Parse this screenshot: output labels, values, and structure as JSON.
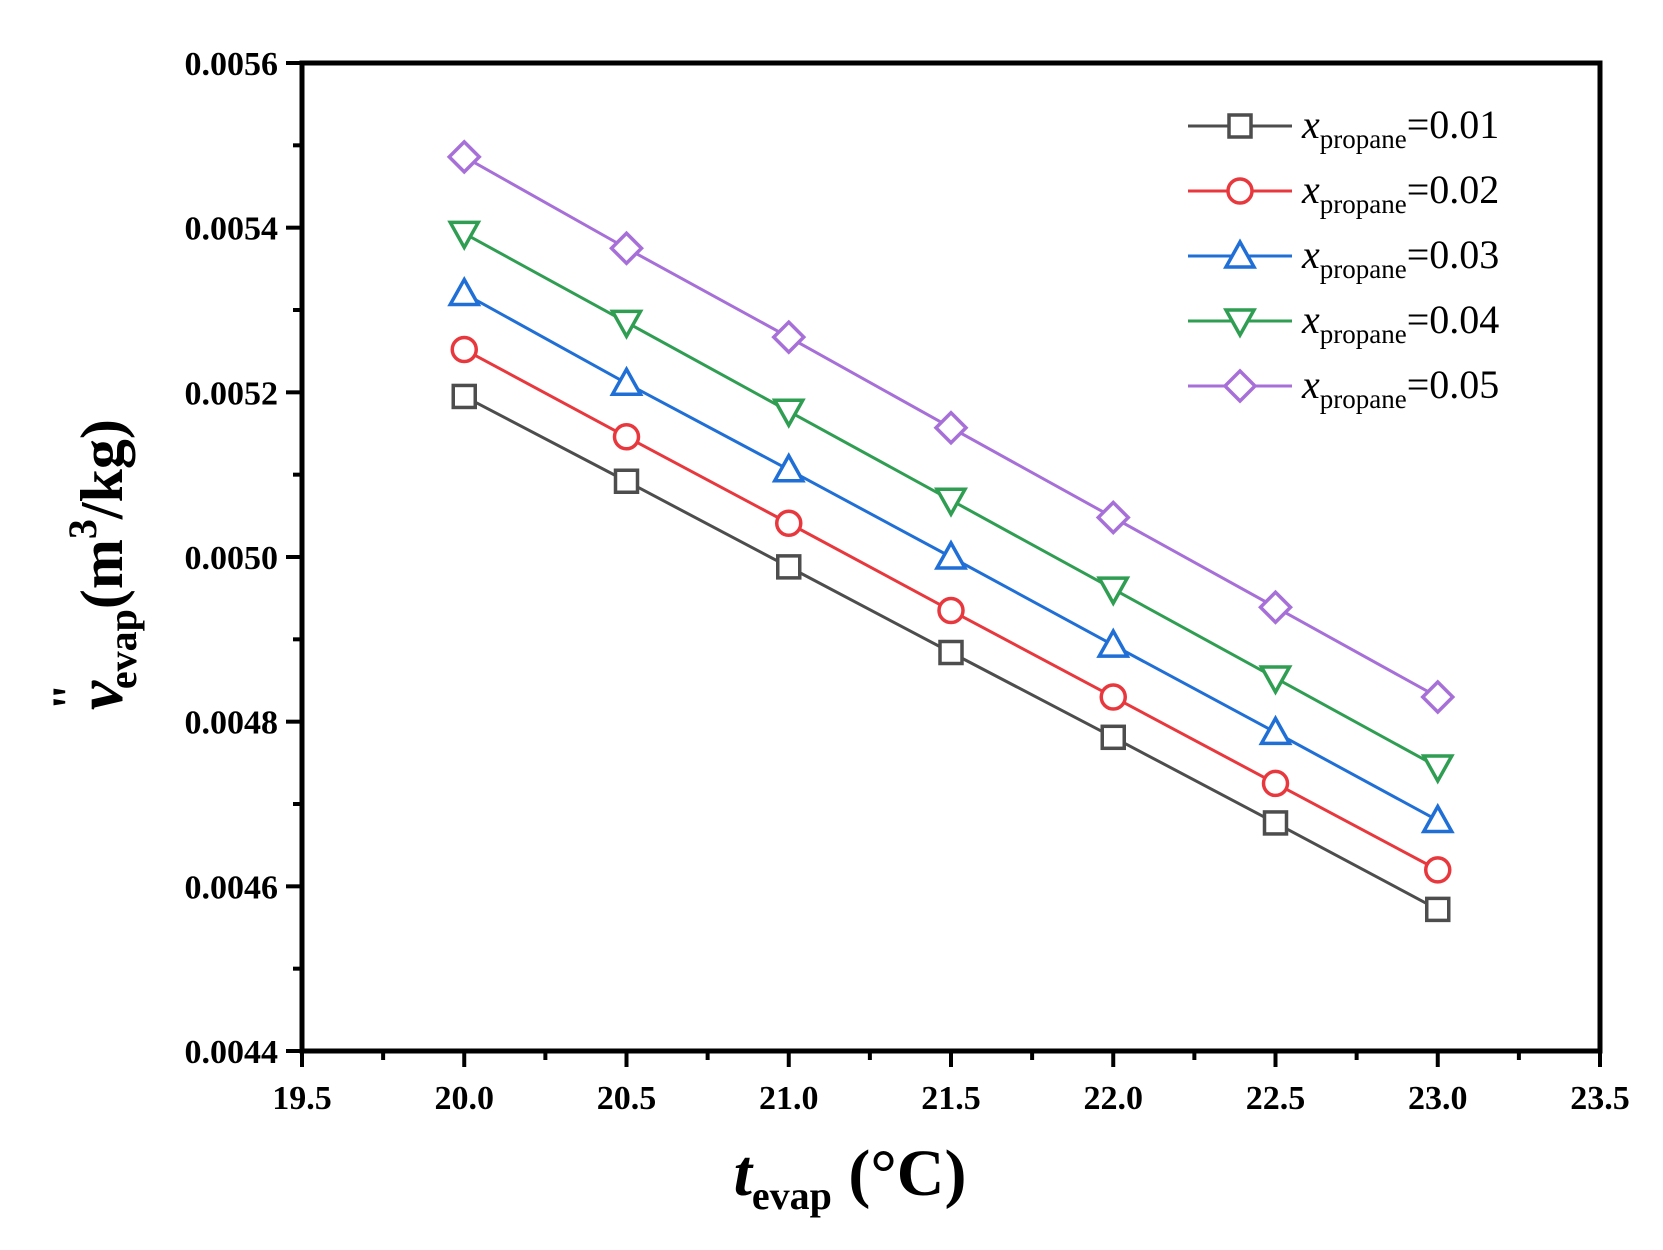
{
  "chart_data": {
    "type": "line",
    "x": [
      20.0,
      20.5,
      21.0,
      21.5,
      22.0,
      22.5,
      23.0
    ],
    "xlim": [
      19.5,
      23.5
    ],
    "ylim": [
      0.0044,
      0.0056
    ],
    "xticks": [
      "19.5",
      "20.0",
      "20.5",
      "21.0",
      "21.5",
      "22.0",
      "22.5",
      "23.0",
      "23.5"
    ],
    "yticks": [
      "0.0044",
      "0.0046",
      "0.0048",
      "0.0050",
      "0.0052",
      "0.0054",
      "0.0056"
    ],
    "xlabel": {
      "main": "t",
      "sub": "evap",
      "unit": " (°C)"
    },
    "ylabel": {
      "main": "v",
      "prime": "\"",
      "sub": "evap",
      "unit_pre": "(m",
      "unit_sup": "3",
      "unit_post": "/kg)"
    },
    "legend_position": "top-right",
    "grid": false,
    "series": [
      {
        "name": "x_propane=0.01",
        "label_main": "x",
        "label_sub": "propane",
        "label_value": "=0.01",
        "color": "#4d4d4d",
        "marker": "square",
        "values": [
          0.005195,
          0.005092,
          0.004988,
          0.004884,
          0.004781,
          0.004677,
          0.004572
        ]
      },
      {
        "name": "x_propane=0.02",
        "label_main": "x",
        "label_sub": "propane",
        "label_value": "=0.02",
        "color": "#e8383d",
        "marker": "circle",
        "values": [
          0.005252,
          0.005146,
          0.005041,
          0.004935,
          0.00483,
          0.004725,
          0.00462
        ]
      },
      {
        "name": "x_propane=0.03",
        "label_main": "x",
        "label_sub": "propane",
        "label_value": "=0.03",
        "color": "#1f6fd6",
        "marker": "triangle-up",
        "values": [
          0.00532,
          0.005211,
          0.005106,
          0.005,
          0.004893,
          0.004787,
          0.00468
        ]
      },
      {
        "name": "x_propane=0.04",
        "label_main": "x",
        "label_sub": "propane",
        "label_value": "=0.04",
        "color": "#2f9e52",
        "marker": "triangle-down",
        "values": [
          0.005393,
          0.005285,
          0.005177,
          0.005069,
          0.004961,
          0.004853,
          0.004745
        ]
      },
      {
        "name": "x_propane=0.05",
        "label_main": "x",
        "label_sub": "propane",
        "label_value": "=0.05",
        "color": "#a76fd8",
        "marker": "diamond",
        "values": [
          0.005486,
          0.005375,
          0.005267,
          0.005157,
          0.005048,
          0.004939,
          0.00483
        ]
      }
    ]
  }
}
